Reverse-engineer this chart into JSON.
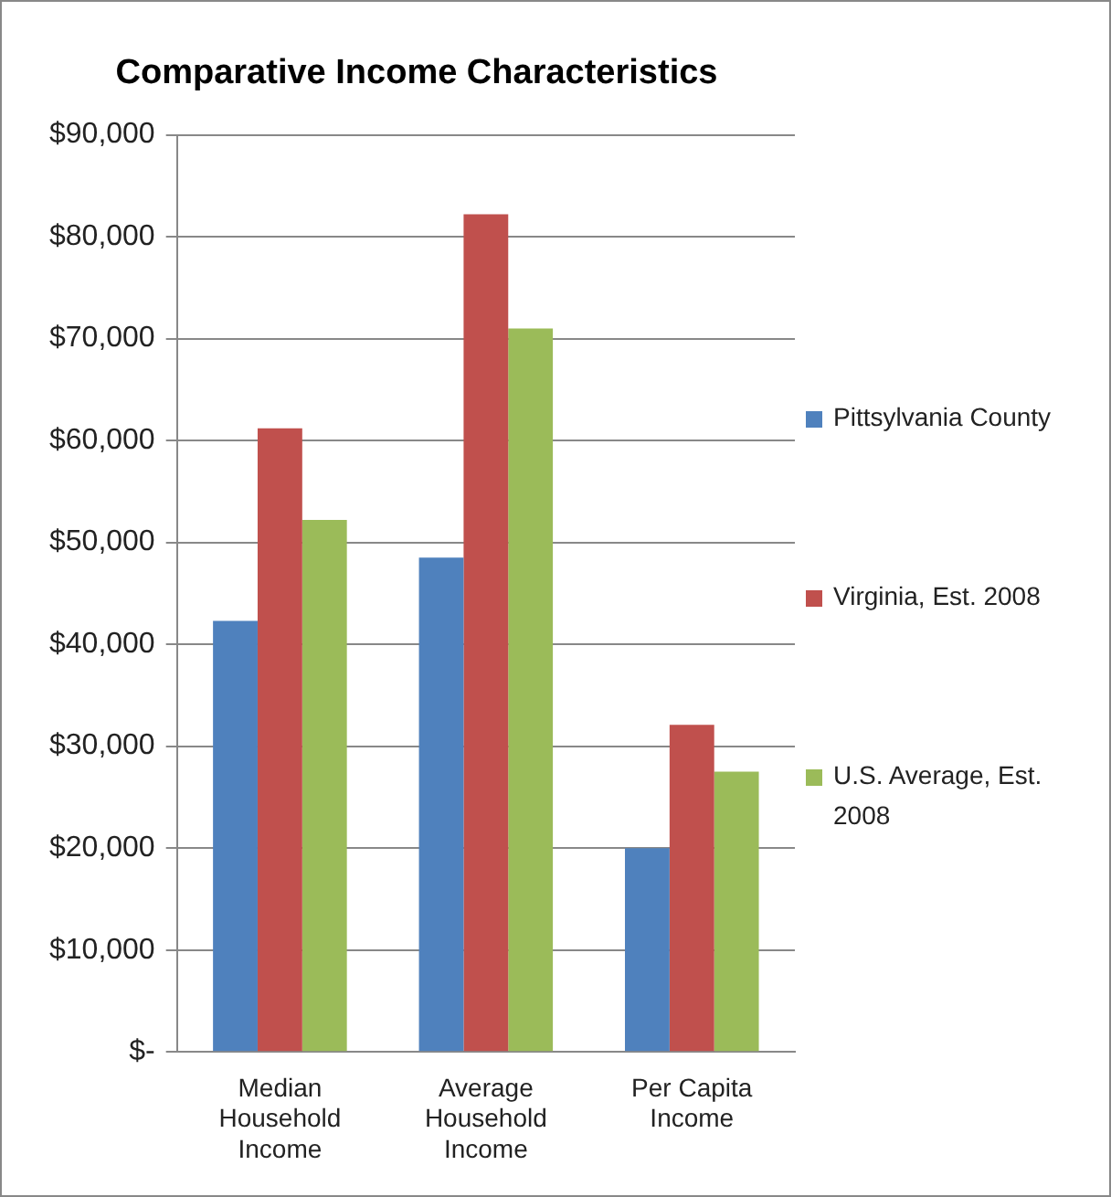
{
  "chart_data": {
    "type": "bar",
    "title": "Comparative Income Characteristics",
    "categories": [
      "Median Household Income",
      "Average Household Income",
      "Per Capita Income"
    ],
    "series": [
      {
        "name": "Pittsylvania County",
        "color": "#4f81bd",
        "values": [
          42300,
          48500,
          20000
        ]
      },
      {
        "name": "Virginia, Est. 2008",
        "color": "#c0504d",
        "values": [
          61200,
          82200,
          32100
        ]
      },
      {
        "name": "U.S. Average, Est. 2008",
        "color": "#9bbb59",
        "values": [
          52200,
          71000,
          27500
        ]
      }
    ],
    "ylim": [
      0,
      90000
    ],
    "yticks": [
      {
        "value": 0,
        "label": "$-"
      },
      {
        "value": 10000,
        "label": "$10,000"
      },
      {
        "value": 20000,
        "label": "$20,000"
      },
      {
        "value": 30000,
        "label": "$30,000"
      },
      {
        "value": 40000,
        "label": "$40,000"
      },
      {
        "value": 50000,
        "label": "$50,000"
      },
      {
        "value": 60000,
        "label": "$60,000"
      },
      {
        "value": 70000,
        "label": "$70,000"
      },
      {
        "value": 80000,
        "label": "$80,000"
      },
      {
        "value": 90000,
        "label": "$90,000"
      }
    ],
    "grid": "y",
    "legend": "right"
  }
}
